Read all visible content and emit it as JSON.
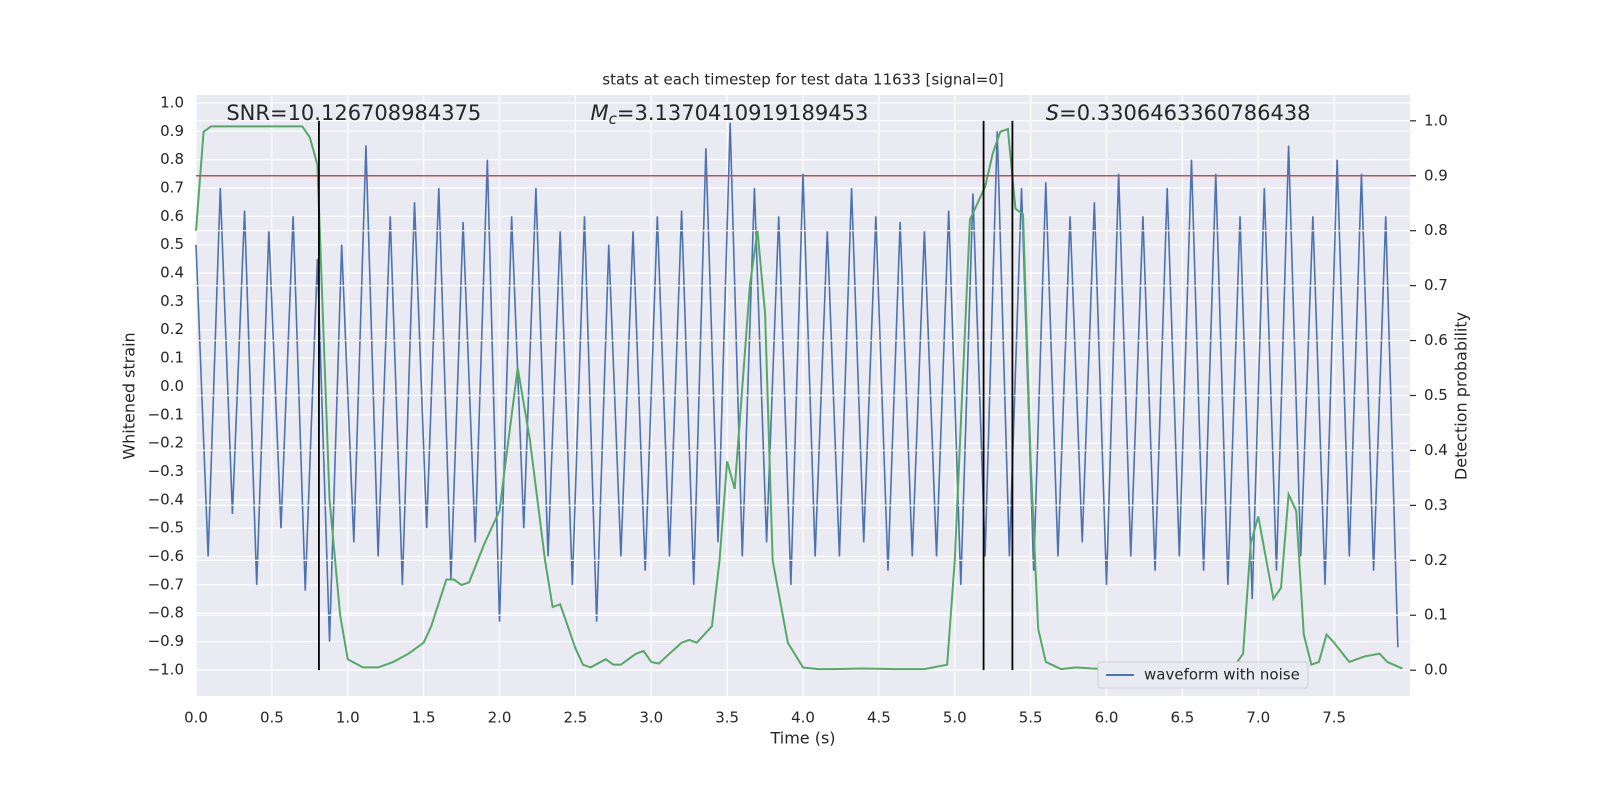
{
  "chart_data": {
    "type": "line",
    "title": "stats at each timestep for test data 11633 [signal=0]",
    "xlabel": "Time (s)",
    "ylabel": "Whitened strain",
    "y2label": "Detection probability",
    "xlim": [
      0,
      8
    ],
    "ylim": [
      -1.092,
      1.028
    ],
    "y2lim": [
      -0.047,
      1.047
    ],
    "xticks": [
      {
        "value": 0,
        "label": "0.0"
      },
      0.5,
      {
        "value": 1,
        "label": "1.0"
      },
      1.5,
      {
        "value": 2,
        "label": "2.0"
      },
      2.5,
      {
        "value": 3,
        "label": "3.0"
      },
      3.5,
      {
        "value": 4,
        "label": "4.0"
      },
      4.5,
      {
        "value": 5,
        "label": "5.0"
      },
      5.5,
      {
        "value": 6,
        "label": "6.0"
      },
      6.5,
      {
        "value": 7,
        "label": "7.0"
      },
      7.5
    ],
    "yticks": [
      {
        "value": -1,
        "label": "−1.0"
      },
      {
        "value": -0.9,
        "label": "−0.9"
      },
      {
        "value": -0.8,
        "label": "−0.8"
      },
      {
        "value": -0.7,
        "label": "−0.7"
      },
      {
        "value": -0.6,
        "label": "−0.6"
      },
      {
        "value": -0.5,
        "label": "−0.5"
      },
      {
        "value": -0.4,
        "label": "−0.4"
      },
      {
        "value": -0.3,
        "label": "−0.3"
      },
      {
        "value": -0.2,
        "label": "−0.2"
      },
      {
        "value": -0.1,
        "label": "−0.1"
      },
      {
        "value": 0,
        "label": "0.0"
      },
      0.1,
      0.2,
      0.3,
      0.4,
      0.5,
      0.6,
      0.7,
      0.8,
      0.9,
      {
        "value": 1,
        "label": "1.0"
      }
    ],
    "y2ticks": [
      {
        "value": 0,
        "label": "0.0"
      },
      0.1,
      0.2,
      0.3,
      0.4,
      0.5,
      0.6,
      0.7,
      0.8,
      0.9,
      {
        "value": 1,
        "label": "1.0"
      }
    ],
    "grid": true,
    "legend": "lower right",
    "annotations": [
      {
        "text": "SNR=10.126708984375",
        "x": 0.2
      },
      {
        "symbol": "M",
        "subscript": "c",
        "text": "=3.1370410919189453",
        "x": 2.6
      },
      {
        "symbol": "S",
        "text": "=0.3306463360786438",
        "x": 5.6
      }
    ],
    "hlines": [
      {
        "value": 0.9,
        "axis": "y2",
        "color": "#c44e52"
      }
    ],
    "vlines": [
      {
        "value": 0.81,
        "color": "#000000"
      },
      {
        "value": 5.19,
        "color": "#000000"
      },
      {
        "value": 5.38,
        "color": "#000000"
      }
    ],
    "series": [
      {
        "name": "waveform with noise",
        "color": "#4c72b0",
        "x": [
          0,
          0.08,
          0.16,
          0.24,
          0.32,
          0.4,
          0.48,
          0.56,
          0.64,
          0.72,
          0.8,
          0.88,
          0.96,
          1.04,
          1.12,
          1.2,
          1.28,
          1.36,
          1.44,
          1.52,
          1.6,
          1.68,
          1.76,
          1.84,
          1.92,
          2,
          2.08,
          2.16,
          2.24,
          2.32,
          2.4,
          2.48,
          2.56,
          2.64,
          2.72,
          2.8,
          2.88,
          2.96,
          3.04,
          3.12,
          3.2,
          3.28,
          3.36,
          3.44,
          3.52,
          3.6,
          3.68,
          3.76,
          3.84,
          3.92,
          4,
          4.08,
          4.16,
          4.24,
          4.32,
          4.4,
          4.48,
          4.56,
          4.64,
          4.72,
          4.8,
          4.88,
          4.96,
          5.04,
          5.12,
          5.2,
          5.28,
          5.36,
          5.44,
          5.52,
          5.6,
          5.68,
          5.76,
          5.84,
          5.92,
          6,
          6.08,
          6.16,
          6.24,
          6.32,
          6.4,
          6.48,
          6.56,
          6.64,
          6.72,
          6.8,
          6.88,
          6.96,
          7.04,
          7.12,
          7.2,
          7.28,
          7.36,
          7.44,
          7.52,
          7.6,
          7.68,
          7.76,
          7.84,
          7.92
        ],
        "values": [
          0.5,
          -0.6,
          0.7,
          -0.45,
          0.62,
          -0.7,
          0.55,
          -0.5,
          0.6,
          -0.72,
          0.45,
          -0.9,
          0.5,
          -0.55,
          0.85,
          -0.6,
          0.6,
          -0.7,
          0.65,
          -0.5,
          0.7,
          -0.68,
          0.58,
          -0.55,
          0.8,
          -0.83,
          0.6,
          -0.5,
          0.7,
          -0.6,
          0.55,
          -0.7,
          0.6,
          -0.83,
          0.5,
          -0.6,
          0.55,
          -0.65,
          0.6,
          -0.6,
          0.62,
          -0.7,
          0.84,
          -0.55,
          0.93,
          -0.6,
          0.7,
          -0.55,
          0.6,
          -0.7,
          0.75,
          -0.6,
          0.55,
          -0.6,
          0.7,
          -0.55,
          0.6,
          -0.65,
          0.58,
          -0.6,
          0.55,
          -0.6,
          0.62,
          -0.7,
          0.68,
          -0.6,
          0.9,
          -0.6,
          0.7,
          -0.65,
          0.72,
          -0.6,
          0.6,
          -0.55,
          0.65,
          -0.7,
          0.75,
          -0.6,
          0.6,
          -0.65,
          0.7,
          -0.6,
          0.8,
          -0.65,
          0.75,
          -0.7,
          0.6,
          -0.75,
          0.7,
          -0.65,
          0.85,
          -0.6,
          0.6,
          -0.7,
          0.8,
          -0.6,
          0.75,
          -0.65,
          0.6,
          -0.92
        ]
      },
      {
        "color": "#55a868",
        "axis": "y2",
        "x": [
          0,
          0.05,
          0.1,
          0.7,
          0.75,
          0.8,
          0.88,
          0.95,
          1,
          1.1,
          1.2,
          1.3,
          1.4,
          1.5,
          1.55,
          1.65,
          1.7,
          1.75,
          1.8,
          1.9,
          2,
          2.05,
          2.12,
          2.2,
          2.3,
          2.35,
          2.4,
          2.5,
          2.55,
          2.6,
          2.7,
          2.75,
          2.8,
          2.9,
          2.95,
          3,
          3.05,
          3.1,
          3.2,
          3.25,
          3.3,
          3.4,
          3.45,
          3.5,
          3.55,
          3.65,
          3.7,
          3.75,
          3.8,
          3.9,
          4,
          4.1,
          4.2,
          4.4,
          4.6,
          4.8,
          4.95,
          5,
          5.1,
          5.2,
          5.25,
          5.3,
          5.35,
          5.4,
          5.45,
          5.5,
          5.55,
          5.6,
          5.7,
          5.8,
          5.9,
          6,
          6.5,
          6.85,
          6.9,
          6.95,
          7,
          7.1,
          7.15,
          7.2,
          7.25,
          7.3,
          7.35,
          7.4,
          7.45,
          7.5,
          7.6,
          7.7,
          7.8,
          7.85,
          7.95
        ],
        "values": [
          0.8,
          0.98,
          0.99,
          0.99,
          0.97,
          0.92,
          0.31,
          0.1,
          0.02,
          0.005,
          0.005,
          0.015,
          0.03,
          0.05,
          0.08,
          0.165,
          0.165,
          0.155,
          0.16,
          0.23,
          0.29,
          0.4,
          0.55,
          0.42,
          0.2,
          0.115,
          0.12,
          0.04,
          0.01,
          0.005,
          0.02,
          0.01,
          0.01,
          0.03,
          0.035,
          0.015,
          0.012,
          0.025,
          0.05,
          0.055,
          0.05,
          0.08,
          0.2,
          0.38,
          0.33,
          0.7,
          0.8,
          0.65,
          0.2,
          0.05,
          0.005,
          0.002,
          0.002,
          0.003,
          0.002,
          0.002,
          0.01,
          0.2,
          0.82,
          0.88,
          0.94,
          0.98,
          0.985,
          0.84,
          0.83,
          0.38,
          0.075,
          0.015,
          0.002,
          0.005,
          0.003,
          0.002,
          0.002,
          0.01,
          0.03,
          0.23,
          0.28,
          0.13,
          0.15,
          0.32,
          0.29,
          0.065,
          0.01,
          0.015,
          0.065,
          0.05,
          0.015,
          0.025,
          0.03,
          0.015,
          0.003
        ]
      }
    ]
  }
}
